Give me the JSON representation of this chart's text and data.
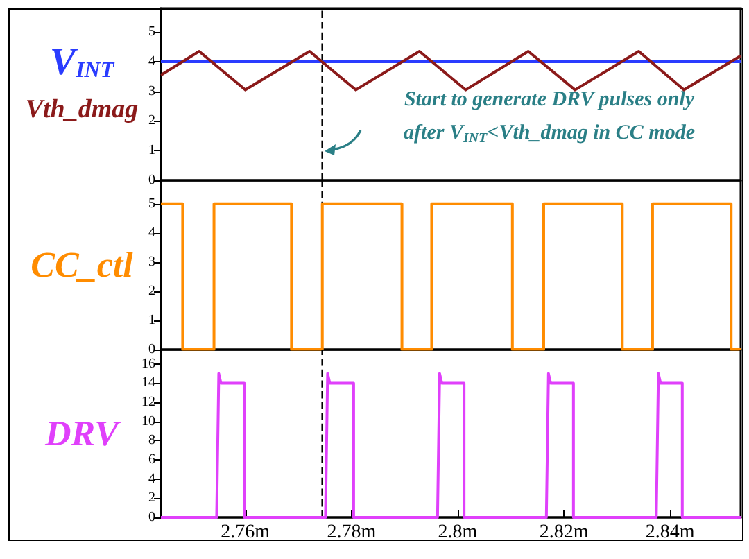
{
  "chart_data": [
    {
      "type": "line",
      "xlim": [
        2.7441,
        2.8533
      ],
      "ylim": [
        0,
        5.8
      ],
      "yticks": [
        0,
        1,
        2,
        3,
        4,
        5
      ],
      "tick_labels": "y",
      "grid": false,
      "legend": false,
      "annotations": [
        "Start to generate DRV pulses only\nafter V$_{INT}$<Vth_dmag in CC mode"
      ],
      "ref_lines": [
        {
          "axis": "x",
          "value": 2.7745,
          "label": null,
          "color": "#000000",
          "line_style": "dashed"
        }
      ],
      "series": [
        {
          "name": "V$_{INT}$",
          "color": "#2a3cff",
          "x": [
            2.7441,
            2.8533
          ],
          "values": [
            4,
            4
          ]
        },
        {
          "name": "Vth_dmag",
          "color": "#8b1a1a",
          "x": [
            2.7441,
            2.7513,
            2.76,
            2.7721,
            2.7808,
            2.7928,
            2.8015,
            2.8133,
            2.8221,
            2.8341,
            2.8426,
            2.8533
          ],
          "values": [
            3.55,
            4.35,
            3.05,
            4.35,
            3.05,
            4.35,
            3.05,
            4.35,
            3.05,
            4.35,
            3.05,
            4.2
          ]
        }
      ]
    },
    {
      "type": "line",
      "xlim": [
        2.7441,
        2.8533
      ],
      "ylim": [
        0,
        5.8
      ],
      "yticks": [
        0,
        1,
        2,
        3,
        4,
        5
      ],
      "tick_labels": "y",
      "grid": false,
      "legend": false,
      "ref_lines": [
        {
          "axis": "x",
          "value": 2.7745,
          "label": null,
          "color": "#000000",
          "line_style": "dashed"
        }
      ],
      "series": [
        {
          "name": "CC_ctl",
          "color": "#ff8c00",
          "x": [
            2.7441,
            2.7482,
            2.7482,
            2.7541,
            2.7541,
            2.7687,
            2.7687,
            2.7745,
            2.7745,
            2.7895,
            2.7895,
            2.7951,
            2.7951,
            2.8103,
            2.8103,
            2.8162,
            2.8162,
            2.831,
            2.831,
            2.8367,
            2.8367,
            2.8515,
            2.8515,
            2.8533
          ],
          "values": [
            5,
            5,
            0,
            0,
            5,
            5,
            0,
            0,
            5,
            5,
            0,
            0,
            5,
            5,
            0,
            0,
            5,
            5,
            0,
            0,
            5,
            5,
            0,
            0
          ]
        }
      ]
    },
    {
      "type": "line",
      "xlim": [
        2.7441,
        2.8533
      ],
      "ylim": [
        0,
        17.5
      ],
      "yticks": [
        0,
        2,
        4,
        6,
        8,
        10,
        12,
        14,
        16
      ],
      "grid": false,
      "legend": false,
      "xticks": [
        {
          "value": 2.76,
          "label": "2.76m"
        },
        {
          "value": 2.78,
          "label": "2.78m"
        },
        {
          "value": 2.8,
          "label": "2.8m"
        },
        {
          "value": 2.82,
          "label": "2.82m"
        },
        {
          "value": 2.84,
          "label": "2.84m"
        }
      ],
      "ref_lines": [
        {
          "axis": "x",
          "value": 2.7745,
          "label": null,
          "color": "#000000",
          "line_style": "dashed"
        }
      ],
      "series": [
        {
          "name": "DRV",
          "color": "#e040fb",
          "x": [
            2.7441,
            2.7546,
            2.755,
            2.7554,
            2.7559,
            2.7598,
            2.7598,
            2.7751,
            2.7755,
            2.7759,
            2.7764,
            2.7804,
            2.7804,
            2.7962,
            2.7966,
            2.797,
            2.7975,
            2.8012,
            2.8012,
            2.8167,
            2.8171,
            2.8175,
            2.818,
            2.8218,
            2.8218,
            2.8374,
            2.8378,
            2.8382,
            2.8387,
            2.8423,
            2.8423,
            2.8533
          ],
          "values": [
            0,
            0,
            15,
            14,
            14,
            14,
            0,
            0,
            15,
            14,
            14,
            14,
            0,
            0,
            15,
            14,
            14,
            14,
            0,
            0,
            15,
            14,
            14,
            14,
            0,
            0,
            15,
            14,
            14,
            14,
            0,
            0
          ]
        }
      ]
    }
  ]
}
